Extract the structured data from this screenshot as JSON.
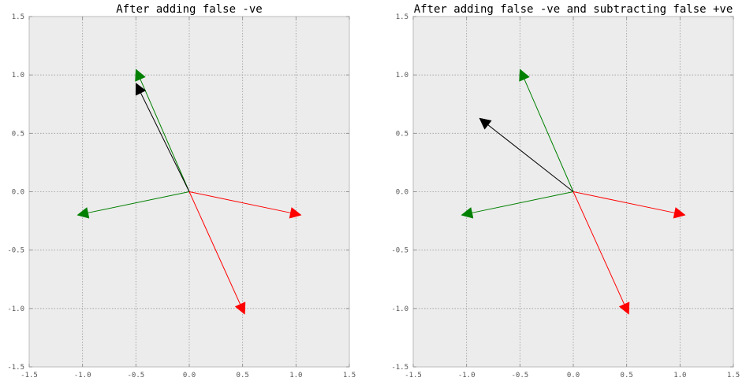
{
  "chart_data": [
    {
      "type": "line",
      "title": "After adding false -ve",
      "xlabel": "",
      "ylabel": "",
      "xlim": [
        -1.5,
        1.5
      ],
      "ylim": [
        -1.5,
        1.5
      ],
      "xticks": [
        "-1.5",
        "-1.0",
        "-0.5",
        "0.0",
        "0.5",
        "1.0",
        "1.5"
      ],
      "yticks": [
        "1.5",
        "1.0",
        "0.5",
        "0.0",
        "-0.5",
        "-1.0",
        "-1.5"
      ],
      "grid": true,
      "background": "#ececec",
      "arrows": [
        {
          "color": "#008000",
          "dx": -0.5,
          "dy": 1.05
        },
        {
          "color": "#008000",
          "dx": -1.05,
          "dy": -0.2
        },
        {
          "color": "#ff0000",
          "dx": 1.05,
          "dy": -0.2
        },
        {
          "color": "#ff0000",
          "dx": 0.52,
          "dy": -1.05
        },
        {
          "color": "#000000",
          "dx": -0.5,
          "dy": 0.93
        }
      ]
    },
    {
      "type": "line",
      "title": "After adding false -ve and subtracting false +ve",
      "xlabel": "",
      "ylabel": "",
      "xlim": [
        -1.5,
        1.5
      ],
      "ylim": [
        -1.5,
        1.5
      ],
      "xticks": [
        "-1.5",
        "-1.0",
        "-0.5",
        "0.0",
        "0.5",
        "1.0",
        "1.5"
      ],
      "yticks": [
        "1.5",
        "1.0",
        "0.5",
        "0.0",
        "-0.5",
        "-1.0",
        "-1.5"
      ],
      "grid": true,
      "background": "#ececec",
      "arrows": [
        {
          "color": "#008000",
          "dx": -0.5,
          "dy": 1.05
        },
        {
          "color": "#008000",
          "dx": -1.05,
          "dy": -0.2
        },
        {
          "color": "#ff0000",
          "dx": 1.05,
          "dy": -0.2
        },
        {
          "color": "#ff0000",
          "dx": 0.52,
          "dy": -1.05
        },
        {
          "color": "#000000",
          "dx": -0.88,
          "dy": 0.63
        }
      ]
    }
  ]
}
